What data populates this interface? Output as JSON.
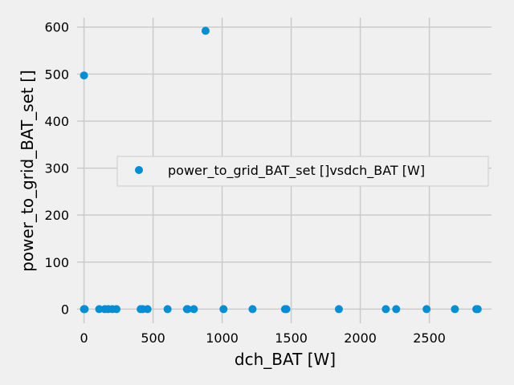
{
  "chart_data": {
    "type": "scatter",
    "title": "",
    "xlabel": "dch_BAT [W]",
    "ylabel": "power_to_grid_BAT_set []",
    "xlim": [
      -50,
      2950
    ],
    "ylim": [
      -30,
      620
    ],
    "x_ticks": [
      0,
      500,
      1000,
      1500,
      2000,
      2500
    ],
    "y_ticks": [
      0,
      100,
      200,
      300,
      400,
      500,
      600
    ],
    "grid": true,
    "legend_position": "center-right",
    "marker_color": "#008fd5",
    "series": [
      {
        "name": "power_to_grid_BAT_set []vsdch_BAT [W]",
        "points": [
          [
            0,
            497
          ],
          [
            880,
            592
          ],
          [
            0,
            0
          ],
          [
            5,
            0
          ],
          [
            110,
            0
          ],
          [
            150,
            0
          ],
          [
            175,
            0
          ],
          [
            205,
            0
          ],
          [
            235,
            0
          ],
          [
            410,
            0
          ],
          [
            425,
            0
          ],
          [
            460,
            0
          ],
          [
            605,
            0
          ],
          [
            745,
            0
          ],
          [
            750,
            0
          ],
          [
            795,
            0
          ],
          [
            1010,
            0
          ],
          [
            1220,
            0
          ],
          [
            1455,
            0
          ],
          [
            1465,
            0
          ],
          [
            1845,
            0
          ],
          [
            2185,
            0
          ],
          [
            2260,
            0
          ],
          [
            2480,
            0
          ],
          [
            2685,
            0
          ],
          [
            2840,
            0
          ],
          [
            2850,
            0
          ]
        ]
      }
    ]
  }
}
